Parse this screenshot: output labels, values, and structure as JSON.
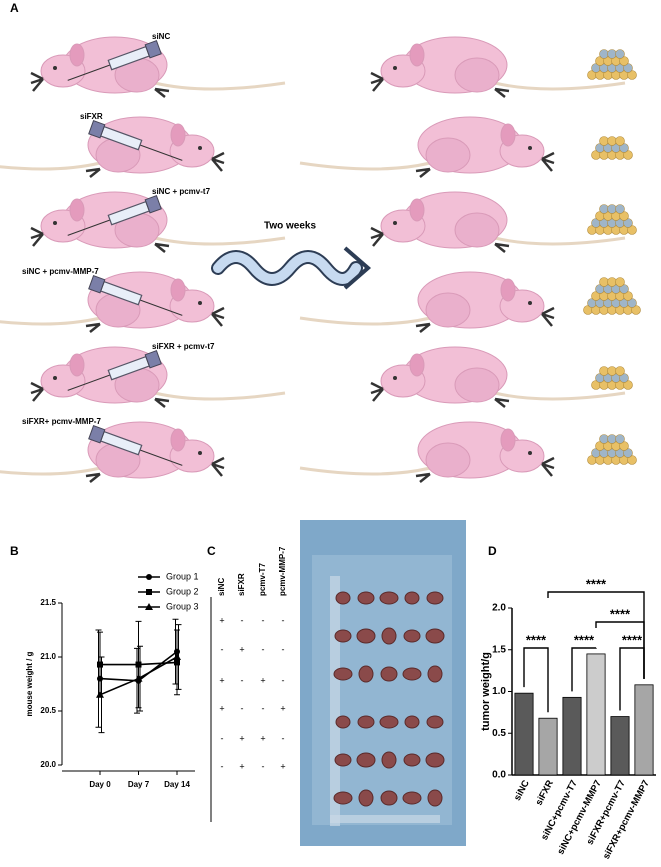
{
  "panel_a": {
    "label": "A",
    "arrow_label": "Two weeks",
    "groups": [
      "siNC",
      "siFXR",
      "siNC + pcmv-t7",
      "siNC + pcmv-MMP-7",
      "siFXR + pcmv-t7",
      "siFXR+ pcmv-MMP-7"
    ]
  },
  "panel_c": {
    "label": "C",
    "columns": [
      "siNC",
      "siFXR",
      "pcmv-T7",
      "pcmv-MMP-7"
    ],
    "rows": [
      [
        "+",
        "-",
        "-",
        "-"
      ],
      [
        "-",
        "+",
        "-",
        "-"
      ],
      [
        "+",
        "-",
        "+",
        "-"
      ],
      [
        "+",
        "-",
        "-",
        "+"
      ],
      [
        "-",
        "+",
        "+",
        "-"
      ],
      [
        "-",
        "+",
        "-",
        "+"
      ]
    ]
  },
  "chart_data": [
    {
      "panel_label": "B",
      "type": "line",
      "ylabel": "mouse weight / g",
      "categories": [
        "Day 0",
        "Day 7",
        "Day 14"
      ],
      "series": [
        {
          "name": "Group 1",
          "color": "#000000",
          "marker": "circle",
          "values": [
            20.8,
            20.78,
            21.05
          ],
          "errors": [
            0.45,
            0.3,
            0.3
          ]
        },
        {
          "name": "Group 2",
          "color": "#000000",
          "marker": "square",
          "values": [
            20.93,
            20.93,
            20.95
          ],
          "errors": [
            0.3,
            0.4,
            0.3
          ]
        },
        {
          "name": "Group 3",
          "color": "#000000",
          "marker": "triangle",
          "values": [
            20.65,
            20.8,
            21.0
          ],
          "errors": [
            0.35,
            0.3,
            0.3
          ]
        }
      ],
      "ylim": [
        20.0,
        21.5
      ],
      "yticks": [
        {
          "value": 20,
          "label": "20.0"
        },
        20.5,
        {
          "value": 21,
          "label": "21.0"
        },
        21.5
      ],
      "legend": "top right"
    },
    {
      "panel_label": "D",
      "type": "bar",
      "ylabel": "tumor weight/g",
      "categories": [
        "siNC",
        "siFXR",
        "siNC+pcmv-T7",
        "siNC+pcmv-MMP7",
        "siFXR+pcmv-T7",
        "siFXR+pcmv-MMP7"
      ],
      "values": [
        0.98,
        0.68,
        0.93,
        1.45,
        0.7,
        1.08
      ],
      "colors": [
        "#5a5a5a",
        "#a6a6a6",
        "#5a5a5a",
        "#cccccc",
        "#5a5a5a",
        "#a6a6a6"
      ],
      "ylim": [
        0,
        2
      ],
      "yticks": [
        {
          "value": 0,
          "label": "0.0"
        },
        0.5,
        {
          "value": 1,
          "label": "1.0"
        },
        1.5,
        {
          "value": 2,
          "label": "2.0"
        }
      ],
      "comparisons": [
        {
          "pair": [
            "siNC",
            "siFXR"
          ],
          "label": "****"
        },
        {
          "pair": [
            "siNC+pcmv-T7",
            "siNC+pcmv-MMP7"
          ],
          "label": "****"
        },
        {
          "pair": [
            "siFXR+pcmv-T7",
            "siFXR+pcmv-MMP7"
          ],
          "label": "****"
        },
        {
          "pair": [
            "siNC+pcmv-MMP7",
            "siFXR+pcmv-MMP7"
          ],
          "label": "****"
        },
        {
          "pair": [
            "siFXR",
            "siFXR+pcmv-MMP7"
          ],
          "label": "****"
        }
      ]
    }
  ]
}
